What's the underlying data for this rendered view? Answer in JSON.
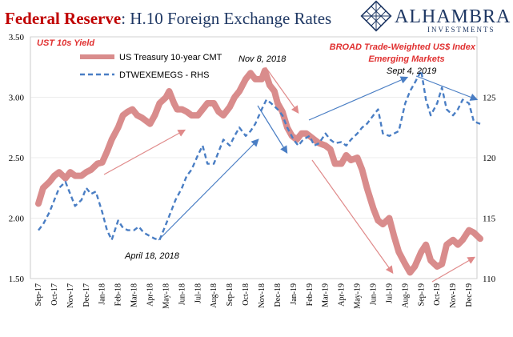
{
  "header": {
    "title_red": "Federal Reserve",
    "title_blue": ": H.10 Foreign Exchange Rates",
    "logo_name": "ALHAMBRA",
    "logo_sub": "INVESTMENTS",
    "logo_icon": "diamond-lattice-icon"
  },
  "colors": {
    "treasury": "#d98c8c",
    "dollar": "#4a7ec4",
    "arrow_blue": "#4a7ec4",
    "arrow_red": "#e08a8a",
    "annotation_red": "#e03030"
  },
  "chart_data": {
    "type": "line",
    "title": "Federal Reserve: H.10 Foreign Exchange Rates",
    "left_axis_title": "UST 10s Yield",
    "right_axis_title_line1": "BROAD Trade-Weighted US$ Index",
    "right_axis_title_line2": "Emerging Markets",
    "ylim_left": [
      1.5,
      3.5
    ],
    "ylim_right": [
      110,
      130
    ],
    "left_ticks": [
      "1.50",
      "2.00",
      "2.50",
      "3.00",
      "3.50"
    ],
    "right_ticks": [
      "110",
      "115",
      "120",
      "125"
    ],
    "x_ticks": [
      "Sep-17",
      "Oct-17",
      "Nov-17",
      "Dec-17",
      "Jan-18",
      "Feb-18",
      "Mar-18",
      "Apr-18",
      "May-18",
      "Jun-18",
      "Jul-18",
      "Aug-18",
      "Sep-18",
      "Oct-18",
      "Nov-18",
      "Dec-18",
      "Jan-19",
      "Feb-19",
      "Mar-19",
      "Apr-19",
      "May-19",
      "Jun-19",
      "Jul-19",
      "Aug-19",
      "Sep-19",
      "Oct-19",
      "Nov-19",
      "Dec-19"
    ],
    "legend": {
      "placement": "top-left"
    },
    "series": [
      {
        "name": "US Treasury 10-year CMT",
        "axis": "left",
        "style": "solid-thick",
        "points": [
          [
            0.0,
            2.12
          ],
          [
            0.3,
            2.25
          ],
          [
            0.7,
            2.3
          ],
          [
            1.0,
            2.35
          ],
          [
            1.3,
            2.38
          ],
          [
            1.7,
            2.33
          ],
          [
            2.0,
            2.38
          ],
          [
            2.3,
            2.35
          ],
          [
            2.7,
            2.35
          ],
          [
            3.0,
            2.38
          ],
          [
            3.3,
            2.4
          ],
          [
            3.7,
            2.45
          ],
          [
            4.0,
            2.46
          ],
          [
            4.3,
            2.55
          ],
          [
            4.6,
            2.65
          ],
          [
            5.0,
            2.75
          ],
          [
            5.3,
            2.85
          ],
          [
            5.6,
            2.88
          ],
          [
            5.9,
            2.9
          ],
          [
            6.2,
            2.85
          ],
          [
            6.5,
            2.83
          ],
          [
            6.8,
            2.8
          ],
          [
            7.0,
            2.78
          ],
          [
            7.3,
            2.85
          ],
          [
            7.6,
            2.95
          ],
          [
            8.0,
            3.0
          ],
          [
            8.2,
            3.05
          ],
          [
            8.5,
            2.95
          ],
          [
            8.7,
            2.9
          ],
          [
            9.0,
            2.9
          ],
          [
            9.3,
            2.88
          ],
          [
            9.6,
            2.85
          ],
          [
            10.0,
            2.85
          ],
          [
            10.3,
            2.9
          ],
          [
            10.6,
            2.95
          ],
          [
            11.0,
            2.95
          ],
          [
            11.3,
            2.88
          ],
          [
            11.6,
            2.85
          ],
          [
            12.0,
            2.92
          ],
          [
            12.3,
            3.0
          ],
          [
            12.6,
            3.05
          ],
          [
            13.0,
            3.15
          ],
          [
            13.3,
            3.2
          ],
          [
            13.6,
            3.15
          ],
          [
            14.0,
            3.15
          ],
          [
            14.2,
            3.22
          ],
          [
            14.5,
            3.1
          ],
          [
            14.8,
            3.05
          ],
          [
            15.0,
            2.95
          ],
          [
            15.3,
            2.88
          ],
          [
            15.6,
            2.75
          ],
          [
            15.9,
            2.68
          ],
          [
            16.2,
            2.65
          ],
          [
            16.5,
            2.7
          ],
          [
            16.8,
            2.7
          ],
          [
            17.0,
            2.68
          ],
          [
            17.3,
            2.65
          ],
          [
            17.6,
            2.62
          ],
          [
            18.0,
            2.6
          ],
          [
            18.3,
            2.57
          ],
          [
            18.6,
            2.45
          ],
          [
            19.0,
            2.45
          ],
          [
            19.3,
            2.52
          ],
          [
            19.6,
            2.48
          ],
          [
            20.0,
            2.5
          ],
          [
            20.3,
            2.4
          ],
          [
            20.6,
            2.25
          ],
          [
            21.0,
            2.08
          ],
          [
            21.3,
            1.98
          ],
          [
            21.6,
            1.95
          ],
          [
            22.0,
            2.0
          ],
          [
            22.3,
            1.85
          ],
          [
            22.6,
            1.72
          ],
          [
            23.0,
            1.62
          ],
          [
            23.3,
            1.55
          ],
          [
            23.6,
            1.6
          ],
          [
            24.0,
            1.72
          ],
          [
            24.3,
            1.78
          ],
          [
            24.6,
            1.65
          ],
          [
            25.0,
            1.6
          ],
          [
            25.3,
            1.62
          ],
          [
            25.6,
            1.78
          ],
          [
            26.0,
            1.82
          ],
          [
            26.3,
            1.78
          ],
          [
            26.6,
            1.82
          ],
          [
            27.0,
            1.9
          ],
          [
            27.3,
            1.88
          ],
          [
            27.7,
            1.83
          ]
        ]
      },
      {
        "name": "DTWEXEMEGS - RHS",
        "axis": "right",
        "style": "dashed",
        "points": [
          [
            0.0,
            114.0
          ],
          [
            0.3,
            114.5
          ],
          [
            0.7,
            115.5
          ],
          [
            1.0,
            116.5
          ],
          [
            1.3,
            117.5
          ],
          [
            1.7,
            118.0
          ],
          [
            2.0,
            117.0
          ],
          [
            2.3,
            116.0
          ],
          [
            2.7,
            116.5
          ],
          [
            3.0,
            117.5
          ],
          [
            3.3,
            117.0
          ],
          [
            3.6,
            117.2
          ],
          [
            4.0,
            115.5
          ],
          [
            4.3,
            114.0
          ],
          [
            4.6,
            113.2
          ],
          [
            5.0,
            114.8
          ],
          [
            5.3,
            114.2
          ],
          [
            5.6,
            114.0
          ],
          [
            6.0,
            114.0
          ],
          [
            6.3,
            114.3
          ],
          [
            6.6,
            113.8
          ],
          [
            7.0,
            113.5
          ],
          [
            7.3,
            113.3
          ],
          [
            7.6,
            113.2
          ],
          [
            8.0,
            114.5
          ],
          [
            8.3,
            115.5
          ],
          [
            8.6,
            116.5
          ],
          [
            9.0,
            117.5
          ],
          [
            9.3,
            118.5
          ],
          [
            9.6,
            119.0
          ],
          [
            10.0,
            120.2
          ],
          [
            10.3,
            121.0
          ],
          [
            10.6,
            119.5
          ],
          [
            11.0,
            119.5
          ],
          [
            11.3,
            120.5
          ],
          [
            11.6,
            121.5
          ],
          [
            12.0,
            121.0
          ],
          [
            12.3,
            121.8
          ],
          [
            12.6,
            122.5
          ],
          [
            13.0,
            121.8
          ],
          [
            13.3,
            122.2
          ],
          [
            13.6,
            122.8
          ],
          [
            14.0,
            124.0
          ],
          [
            14.3,
            124.8
          ],
          [
            14.6,
            124.5
          ],
          [
            15.0,
            124.0
          ],
          [
            15.3,
            123.5
          ],
          [
            15.6,
            122.5
          ],
          [
            16.0,
            121.5
          ],
          [
            16.3,
            121.0
          ],
          [
            16.6,
            121.5
          ],
          [
            17.0,
            121.8
          ],
          [
            17.3,
            121.0
          ],
          [
            17.6,
            121.2
          ],
          [
            18.0,
            122.0
          ],
          [
            18.3,
            121.5
          ],
          [
            18.6,
            121.2
          ],
          [
            19.0,
            121.3
          ],
          [
            19.3,
            121.0
          ],
          [
            19.6,
            121.5
          ],
          [
            20.0,
            122.0
          ],
          [
            20.3,
            122.5
          ],
          [
            20.6,
            122.8
          ],
          [
            21.0,
            123.5
          ],
          [
            21.3,
            124.0
          ],
          [
            21.6,
            122.0
          ],
          [
            22.0,
            121.8
          ],
          [
            22.3,
            122.0
          ],
          [
            22.6,
            122.2
          ],
          [
            23.0,
            124.5
          ],
          [
            23.3,
            125.5
          ],
          [
            23.6,
            126.2
          ],
          [
            24.0,
            127.2
          ],
          [
            24.3,
            124.8
          ],
          [
            24.6,
            123.5
          ],
          [
            25.0,
            124.5
          ],
          [
            25.3,
            125.8
          ],
          [
            25.6,
            124.0
          ],
          [
            26.0,
            123.5
          ],
          [
            26.3,
            124.0
          ],
          [
            26.6,
            124.8
          ],
          [
            27.0,
            124.5
          ],
          [
            27.3,
            123.0
          ],
          [
            27.7,
            122.8
          ]
        ]
      }
    ]
  },
  "annotations": {
    "nov_label": "Nov 8, 2018",
    "apr_label": "April 18, 2018",
    "sept_label": "Sept 4, 2019"
  }
}
